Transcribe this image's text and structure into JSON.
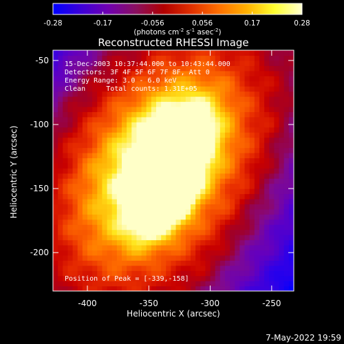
{
  "colorbar": {
    "ticks": [
      "-0.28",
      "-0.17",
      "-0.056",
      "0.056",
      "0.17",
      "0.28"
    ],
    "unit_label_main": "(photons cm",
    "unit_sup1": "-2",
    "unit_mid": " s",
    "unit_sup2": "-1",
    "unit_mid2": " asec",
    "unit_sup3": "-2",
    "unit_close": ")",
    "colors": [
      "#0000ff",
      "#3c00d8",
      "#7000b0",
      "#8a1060",
      "#b00000",
      "#e03000",
      "#ff7000",
      "#ffb000",
      "#ffff30",
      "#ffffd0"
    ]
  },
  "chart_data": {
    "type": "heatmap",
    "title": "Reconstructed RHESSI Image",
    "xlabel": "Heliocentric X (arcsec)",
    "ylabel": "Heliocentric Y (arcsec)",
    "xlim": [
      -428,
      -232
    ],
    "ylim": [
      -230,
      -42
    ],
    "x_ticks": [
      -400,
      -350,
      -300,
      -250
    ],
    "x_tick_labels": [
      "-400",
      "-350",
      "-300",
      "-250"
    ],
    "y_ticks": [
      -50,
      -100,
      -150,
      -200
    ],
    "y_tick_labels": [
      "-50",
      "-100",
      "-150",
      "-200"
    ],
    "value_range": [
      -0.28,
      0.28
    ],
    "peak": [
      -339,
      -158
    ],
    "annotations": {
      "line1": "15-Dec-2003 10:37:44.000 to 10:43:44.000",
      "line2": "Detectors: 3F 4F 5F 6F 7F 8F, Att 0",
      "line3": "Energy Range: 3.0 - 6.0 keV",
      "line4": "Clean     Total counts: 1.31E+05",
      "peak_label": "Position of Peak = [-339,-158]"
    }
  },
  "footer": {
    "date": "7-May-2022 19:59"
  }
}
